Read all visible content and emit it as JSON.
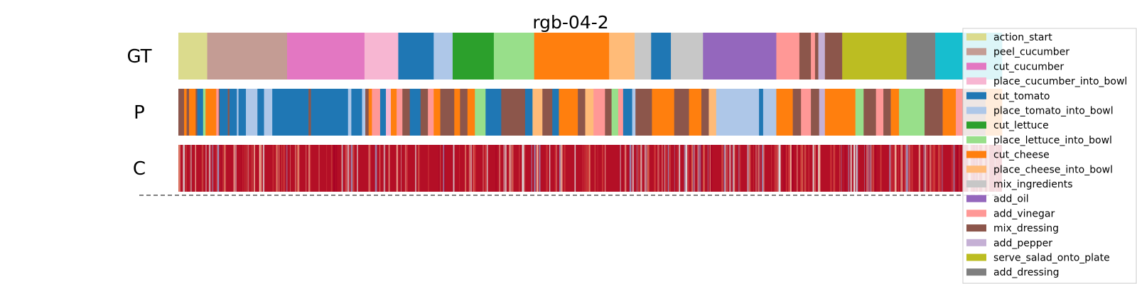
{
  "chart_data": {
    "type": "segmentation",
    "title": "rgb-04-2",
    "rows": [
      "GT",
      "P",
      "C"
    ],
    "legend": [
      {
        "label": "action_start",
        "color": "#dbdb8d"
      },
      {
        "label": "peel_cucumber",
        "color": "#c49c94"
      },
      {
        "label": "cut_cucumber",
        "color": "#e377c2"
      },
      {
        "label": "place_cucumber_into_bowl",
        "color": "#f7b6d2"
      },
      {
        "label": "cut_tomato",
        "color": "#1f77b4"
      },
      {
        "label": "place_tomato_into_bowl",
        "color": "#aec7e8"
      },
      {
        "label": "cut_lettuce",
        "color": "#2ca02c"
      },
      {
        "label": "place_lettuce_into_bowl",
        "color": "#98df8a"
      },
      {
        "label": "cut_cheese",
        "color": "#ff7f0e"
      },
      {
        "label": "place_cheese_into_bowl",
        "color": "#ffbb78"
      },
      {
        "label": "mix_ingredients",
        "color": "#c7c7c7"
      },
      {
        "label": "add_oil",
        "color": "#9467bd"
      },
      {
        "label": "add_vinegar",
        "color": "#ff9896"
      },
      {
        "label": "mix_dressing",
        "color": "#8c564b"
      },
      {
        "label": "add_pepper",
        "color": "#c5b0d5"
      },
      {
        "label": "serve_salad_onto_plate",
        "color": "#bcbd22"
      },
      {
        "label": "add_dressing",
        "color": "#7f7f7f"
      }
    ],
    "gt_segments": [
      {
        "end": 3.5,
        "label": "action_start"
      },
      {
        "end": 13.2,
        "label": "peel_cucumber"
      },
      {
        "end": 22.6,
        "label": "cut_cucumber"
      },
      {
        "end": 26.7,
        "label": "place_cucumber_into_bowl"
      },
      {
        "end": 31.0,
        "label": "cut_tomato"
      },
      {
        "end": 33.3,
        "label": "place_tomato_into_bowl"
      },
      {
        "end": 38.3,
        "label": "cut_lettuce"
      },
      {
        "end": 43.2,
        "label": "place_lettuce_into_bowl"
      },
      {
        "end": 52.3,
        "label": "cut_cheese"
      },
      {
        "end": 55.4,
        "label": "place_cheese_into_bowl"
      },
      {
        "end": 57.4,
        "label": "mix_ingredients"
      },
      {
        "end": 59.8,
        "label": "cut_tomato"
      },
      {
        "end": 63.7,
        "label": "mix_ingredients"
      },
      {
        "end": 72.6,
        "label": "add_oil"
      },
      {
        "end": 75.4,
        "label": "add_vinegar"
      },
      {
        "end": 76.8,
        "label": "mix_dressing"
      },
      {
        "end": 77.3,
        "label": "add_vinegar"
      },
      {
        "end": 77.7,
        "label": "mix_dressing"
      },
      {
        "end": 78.5,
        "label": "add_pepper"
      },
      {
        "end": 80.6,
        "label": "mix_dressing"
      },
      {
        "end": 88.4,
        "label": "serve_salad_onto_plate"
      },
      {
        "end": 91.9,
        "label": "add_dressing"
      },
      {
        "end": 100,
        "label": "other"
      }
    ],
    "p_segments": [
      {
        "end": 0.7,
        "label": "mix_dressing"
      },
      {
        "end": 1.0,
        "label": "cut_cheese"
      },
      {
        "end": 1.3,
        "label": "mix_dressing"
      },
      {
        "end": 2.1,
        "label": "cut_cheese"
      },
      {
        "end": 2.3,
        "label": "mix_dressing"
      },
      {
        "end": 3.0,
        "label": "cut_tomato"
      },
      {
        "end": 3.3,
        "label": "place_lettuce_into_bowl"
      },
      {
        "end": 4.6,
        "label": "cut_cheese"
      },
      {
        "end": 4.9,
        "label": "add_vinegar"
      },
      {
        "end": 5.0,
        "label": "mix_dressing"
      },
      {
        "end": 6.0,
        "label": "cut_tomato"
      },
      {
        "end": 6.2,
        "label": "mix_dressing"
      },
      {
        "end": 7.1,
        "label": "cut_tomato"
      },
      {
        "end": 7.3,
        "label": "place_tomato_into_bowl"
      },
      {
        "end": 8.2,
        "label": "cut_tomato"
      },
      {
        "end": 9.6,
        "label": "place_tomato_into_bowl"
      },
      {
        "end": 10.4,
        "label": "cut_tomato"
      },
      {
        "end": 11.4,
        "label": "place_tomato_into_bowl"
      },
      {
        "end": 15.8,
        "label": "cut_tomato"
      },
      {
        "end": 16.1,
        "label": "mix_dressing"
      },
      {
        "end": 20.6,
        "label": "cut_tomato"
      },
      {
        "end": 21.0,
        "label": "place_tomato_into_bowl"
      },
      {
        "end": 22.3,
        "label": "cut_tomato"
      },
      {
        "end": 22.7,
        "label": "place_tomato_into_bowl"
      },
      {
        "end": 23.1,
        "label": "mix_dressing"
      },
      {
        "end": 23.5,
        "label": "cut_cheese"
      },
      {
        "end": 24.5,
        "label": "add_vinegar"
      },
      {
        "end": 25.2,
        "label": "cut_tomato"
      },
      {
        "end": 25.8,
        "label": "place_cucumber_into_bowl"
      },
      {
        "end": 26.5,
        "label": "cut_cheese"
      },
      {
        "end": 27.2,
        "label": "add_vinegar"
      },
      {
        "end": 28.1,
        "label": "mix_dressing"
      },
      {
        "end": 29.4,
        "label": "cut_tomato"
      },
      {
        "end": 30.3,
        "label": "mix_dressing"
      },
      {
        "end": 31.0,
        "label": "add_vinegar"
      },
      {
        "end": 31.8,
        "label": "cut_cheese"
      },
      {
        "end": 33.5,
        "label": "mix_dressing"
      },
      {
        "end": 34.2,
        "label": "cut_cheese"
      },
      {
        "end": 35.1,
        "label": "mix_dressing"
      },
      {
        "end": 36.0,
        "label": "cut_cheese"
      },
      {
        "end": 37.3,
        "label": "place_lettuce_into_bowl"
      },
      {
        "end": 39.2,
        "label": "cut_tomato"
      },
      {
        "end": 42.1,
        "label": "mix_dressing"
      },
      {
        "end": 43.0,
        "label": "cut_tomato"
      },
      {
        "end": 44.2,
        "label": "place_cheese_into_bowl"
      },
      {
        "end": 45.4,
        "label": "mix_dressing"
      },
      {
        "end": 46.2,
        "label": "cut_tomato"
      },
      {
        "end": 48.5,
        "label": "cut_cheese"
      },
      {
        "end": 49.4,
        "label": "mix_dressing"
      },
      {
        "end": 50.4,
        "label": "place_cheese_into_bowl"
      },
      {
        "end": 51.8,
        "label": "add_vinegar"
      },
      {
        "end": 52.6,
        "label": "mix_dressing"
      },
      {
        "end": 53.4,
        "label": "place_lettuce_into_bowl"
      },
      {
        "end": 54.0,
        "label": "add_vinegar"
      },
      {
        "end": 55.1,
        "label": "cut_tomato"
      },
      {
        "end": 55.5,
        "label": "place_tomato_into_bowl"
      },
      {
        "end": 57.5,
        "label": "mix_dressing"
      },
      {
        "end": 60.2,
        "label": "cut_cheese"
      },
      {
        "end": 62.0,
        "label": "mix_dressing"
      },
      {
        "end": 63.5,
        "label": "cut_cheese"
      },
      {
        "end": 64.4,
        "label": "mix_dressing"
      },
      {
        "end": 65.3,
        "label": "place_cheese_into_bowl"
      },
      {
        "end": 70.5,
        "label": "place_tomato_into_bowl"
      },
      {
        "end": 71.0,
        "label": "cut_tomato"
      },
      {
        "end": 72.6,
        "label": "place_tomato_into_bowl"
      },
      {
        "end": 74.6,
        "label": "cut_cheese"
      },
      {
        "end": 75.6,
        "label": "mix_dressing"
      },
      {
        "end": 76.8,
        "label": "add_vinegar"
      },
      {
        "end": 77.8,
        "label": "mix_dressing"
      },
      {
        "end": 78.5,
        "label": "add_pepper"
      },
      {
        "end": 82.2,
        "label": "cut_cheese"
      },
      {
        "end": 83.2,
        "label": "place_lettuce_into_bowl"
      },
      {
        "end": 84.7,
        "label": "mix_dressing"
      },
      {
        "end": 85.6,
        "label": "add_vinegar"
      },
      {
        "end": 86.5,
        "label": "mix_dressing"
      },
      {
        "end": 87.5,
        "label": "cut_cheese"
      },
      {
        "end": 90.6,
        "label": "place_lettuce_into_bowl"
      },
      {
        "end": 92.8,
        "label": "mix_dressing"
      },
      {
        "end": 94.4,
        "label": "cut_cheese"
      },
      {
        "end": 95.2,
        "label": "add_vinegar"
      },
      {
        "end": 98.0,
        "label": "mix_dressing"
      },
      {
        "end": 100,
        "label": "cut_cheese"
      }
    ]
  }
}
